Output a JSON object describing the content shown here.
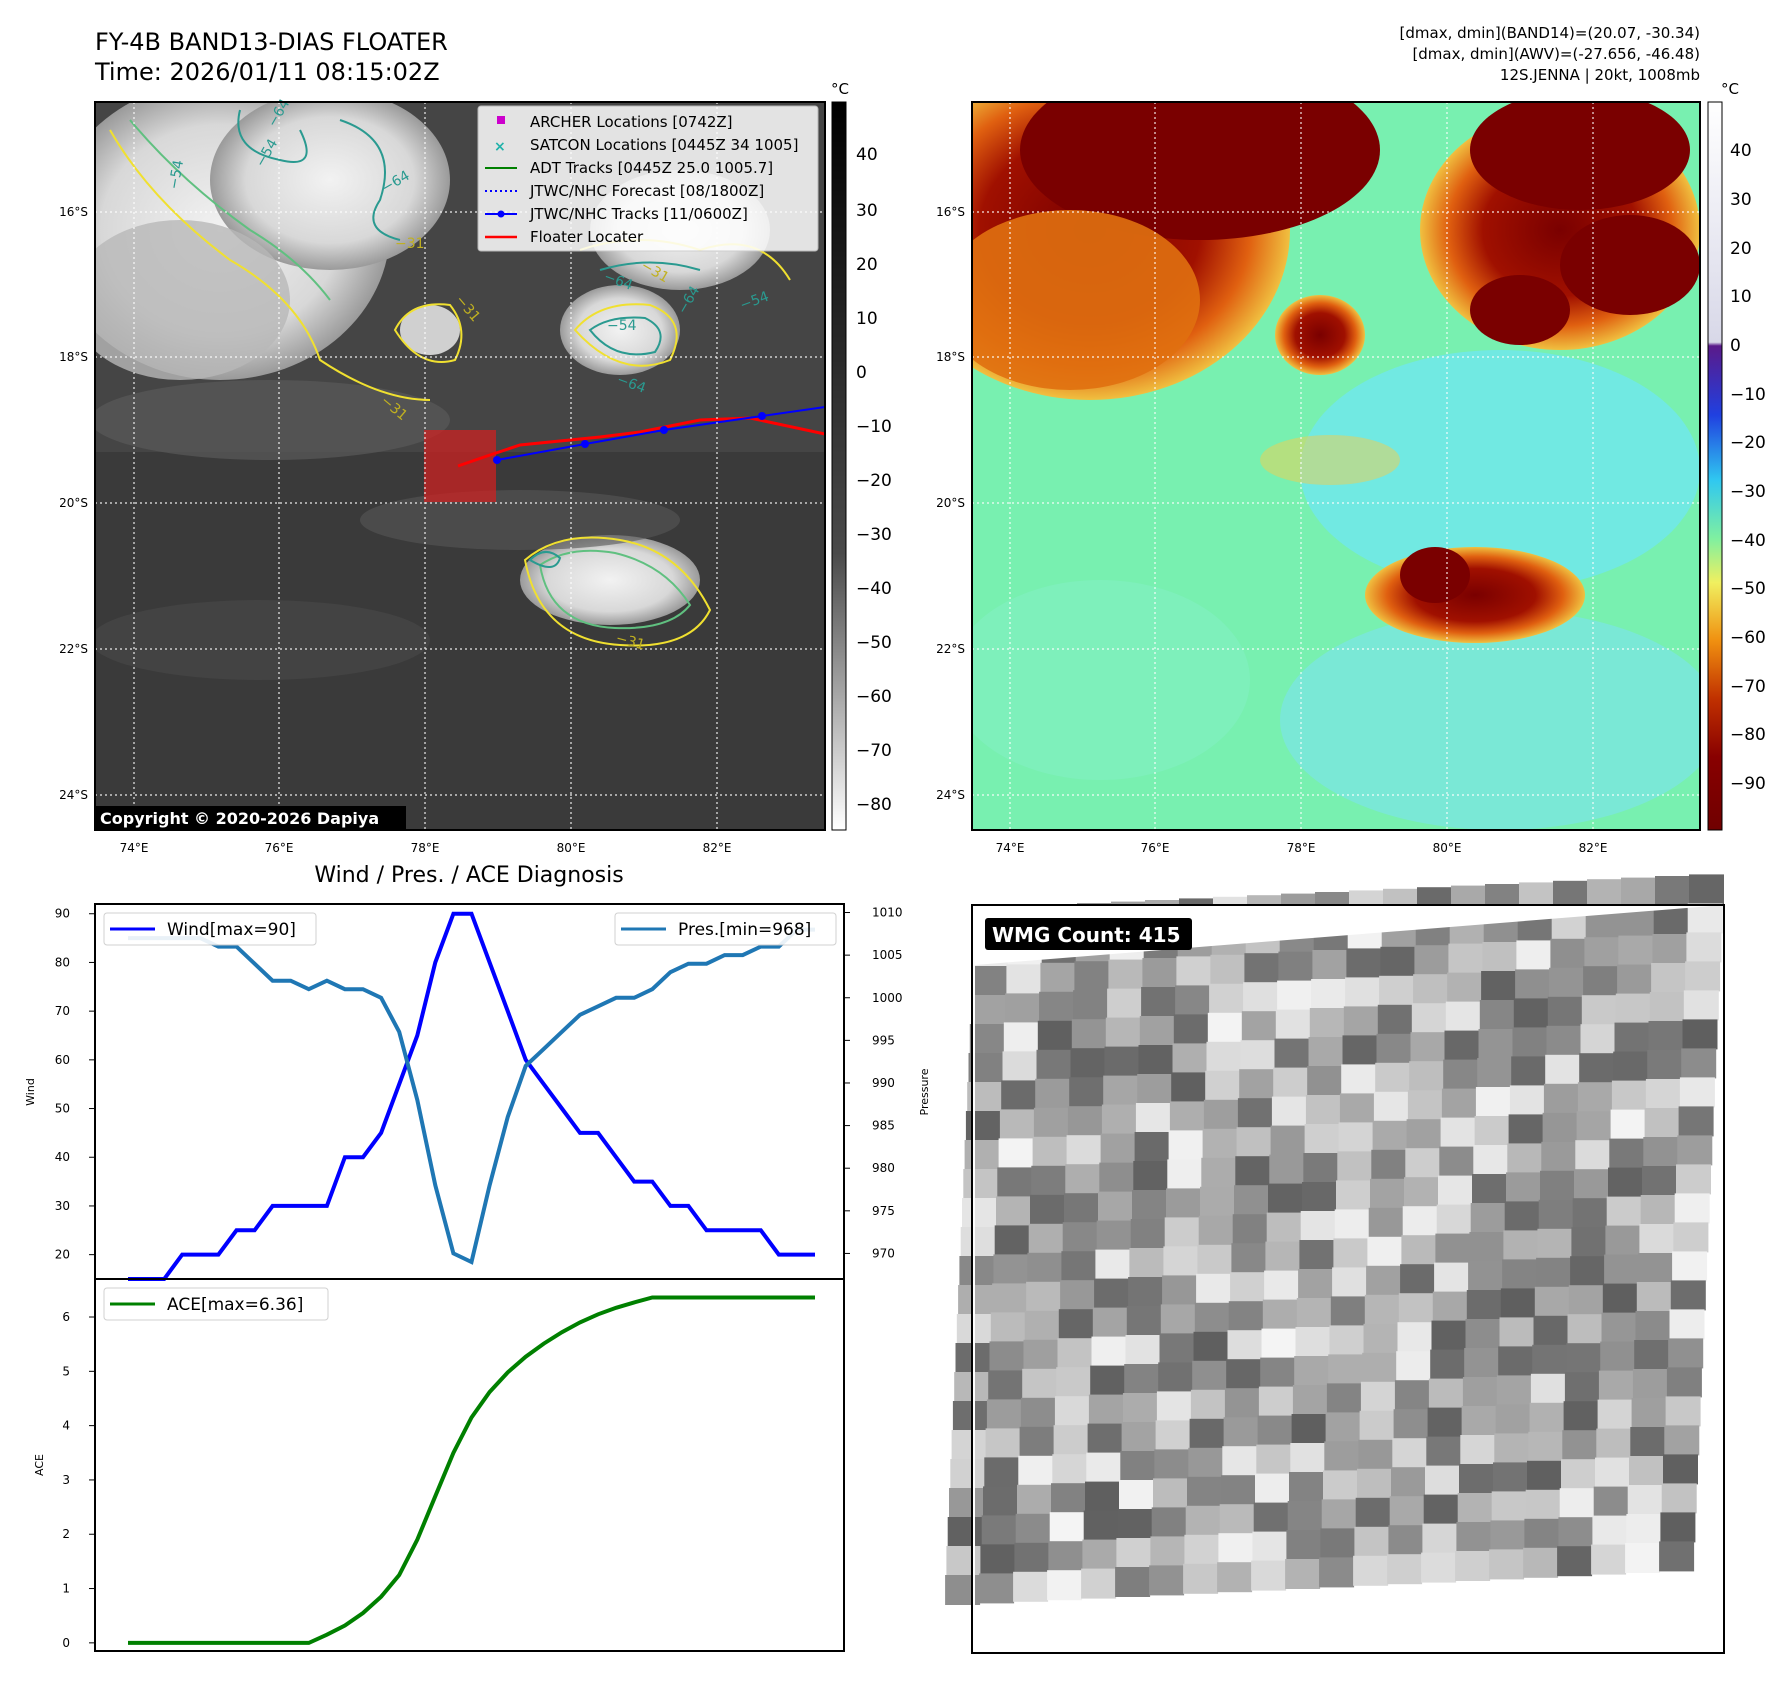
{
  "header": {
    "title_line1": "FY-4B BAND13-DIAS FLOATER",
    "title_line2": "Time: 2026/01/11 08:15:02Z",
    "info_line1": "[dmax, dmin](BAND14)=(20.07, -30.34)",
    "info_line2": "[dmax, dmin](AWV)=(-27.656, -46.48)",
    "info_line3": "12S.JENNA | 20kt, 1008mb"
  },
  "ir_panel": {
    "copyright": "Copyright © 2020-2026 Dapiya",
    "colorbar_unit": "°C",
    "colorbar_ticks": [
      "40",
      "30",
      "20",
      "10",
      "0",
      "−10",
      "−20",
      "−30",
      "−40",
      "−50",
      "−60",
      "−70",
      "−80"
    ],
    "lon_ticks": [
      "74°E",
      "76°E",
      "78°E",
      "80°E",
      "82°E"
    ],
    "lat_ticks": [
      "16°S",
      "18°S",
      "20°S",
      "22°S",
      "24°S"
    ],
    "contour_labels": [
      "−64",
      "−64",
      "−54",
      "−54",
      "−31",
      "−31",
      "−31",
      "−64",
      "−54",
      "−64",
      "−31",
      "−54",
      "−31",
      "−64"
    ],
    "legend": [
      {
        "label": "ARCHER Locations [0742Z]",
        "color": "#cc00cc",
        "marker": "square"
      },
      {
        "label": "SATCON Locations [0445Z 34 1005]",
        "color": "#20b2aa",
        "marker": "x"
      },
      {
        "label": "ADT Tracks [0445Z 25.0 1005.7]",
        "color": "#008000",
        "marker": "line"
      },
      {
        "label": "JTWC/NHC Forecast [08/1800Z]",
        "color": "#0000ff",
        "marker": "dotted"
      },
      {
        "label": "JTWC/NHC Tracks [11/0600Z]",
        "color": "#0000ff",
        "marker": "line-dot"
      },
      {
        "label": "Floater Locater",
        "color": "#ff0000",
        "marker": "line"
      }
    ]
  },
  "wv_panel": {
    "colorbar_unit": "°C",
    "colorbar_ticks": [
      "40",
      "30",
      "20",
      "10",
      "0",
      "−10",
      "−20",
      "−30",
      "−40",
      "−50",
      "−60",
      "−70",
      "−80",
      "−90"
    ],
    "lon_ticks": [
      "74°E",
      "76°E",
      "78°E",
      "80°E",
      "82°E"
    ],
    "lat_ticks": [
      "16°S",
      "18°S",
      "20°S",
      "22°S",
      "24°S"
    ]
  },
  "wmg_panel": {
    "label": "WMG Count: 415"
  },
  "chart_data": [
    {
      "type": "line",
      "title": "Wind / Pres. / ACE Diagnosis",
      "x": [
        0,
        1,
        2,
        3,
        4,
        5,
        6,
        7,
        8,
        9,
        10,
        11,
        12,
        13,
        14,
        15,
        16,
        17,
        18,
        19,
        20,
        21,
        22,
        23,
        24,
        25,
        26,
        27,
        28,
        29,
        30,
        31,
        32,
        33,
        34,
        35,
        36,
        37,
        38
      ],
      "ylabel": "Wind",
      "ylabel_right": "Pressure",
      "ylim": [
        15,
        92
      ],
      "ylim_right": [
        967,
        1011
      ],
      "y_ticks": [
        20,
        30,
        40,
        50,
        60,
        70,
        80,
        90
      ],
      "y_ticks_right": [
        970,
        975,
        980,
        985,
        990,
        995,
        1000,
        1005,
        1010
      ],
      "series": [
        {
          "name": "Wind[max=90]",
          "axis": "left",
          "color": "#0000ff",
          "values": [
            15,
            15,
            15,
            20,
            20,
            20,
            25,
            25,
            30,
            30,
            30,
            30,
            40,
            40,
            45,
            55,
            65,
            80,
            90,
            90,
            80,
            70,
            60,
            55,
            50,
            45,
            45,
            40,
            35,
            35,
            30,
            30,
            25,
            25,
            25,
            25,
            20,
            20,
            20
          ]
        },
        {
          "name": "Pres.[min=968]",
          "axis": "right",
          "color": "#1f77b4",
          "values": [
            1007,
            1007,
            1007,
            1007,
            1007,
            1006,
            1006,
            1004,
            1002,
            1002,
            1001,
            1002,
            1001,
            1001,
            1000,
            996,
            988,
            978,
            970,
            969,
            978,
            986,
            992,
            994,
            996,
            998,
            999,
            1000,
            1000,
            1001,
            1003,
            1004,
            1004,
            1005,
            1005,
            1006,
            1006,
            1008,
            1008
          ]
        }
      ]
    },
    {
      "type": "area",
      "x": [
        0,
        1,
        2,
        3,
        4,
        5,
        6,
        7,
        8,
        9,
        10,
        11,
        12,
        13,
        14,
        15,
        16,
        17,
        18,
        19,
        20,
        21,
        22,
        23,
        24,
        25,
        26,
        27,
        28,
        29,
        30,
        31,
        32,
        33,
        34,
        35,
        36,
        37,
        38
      ],
      "ylabel": "ACE",
      "ylim": [
        -0.15,
        6.7
      ],
      "y_ticks": [
        0,
        1,
        2,
        3,
        4,
        5,
        6
      ],
      "series": [
        {
          "name": "ACE[max=6.36]",
          "color": "#008000",
          "values": [
            0,
            0,
            0,
            0,
            0,
            0,
            0,
            0,
            0,
            0,
            0,
            0.15,
            0.32,
            0.55,
            0.85,
            1.25,
            1.9,
            2.7,
            3.5,
            4.15,
            4.62,
            4.98,
            5.27,
            5.51,
            5.72,
            5.9,
            6.05,
            6.17,
            6.27,
            6.36,
            6.36,
            6.36,
            6.36,
            6.36,
            6.36,
            6.36,
            6.36,
            6.36,
            6.36
          ]
        }
      ]
    }
  ]
}
